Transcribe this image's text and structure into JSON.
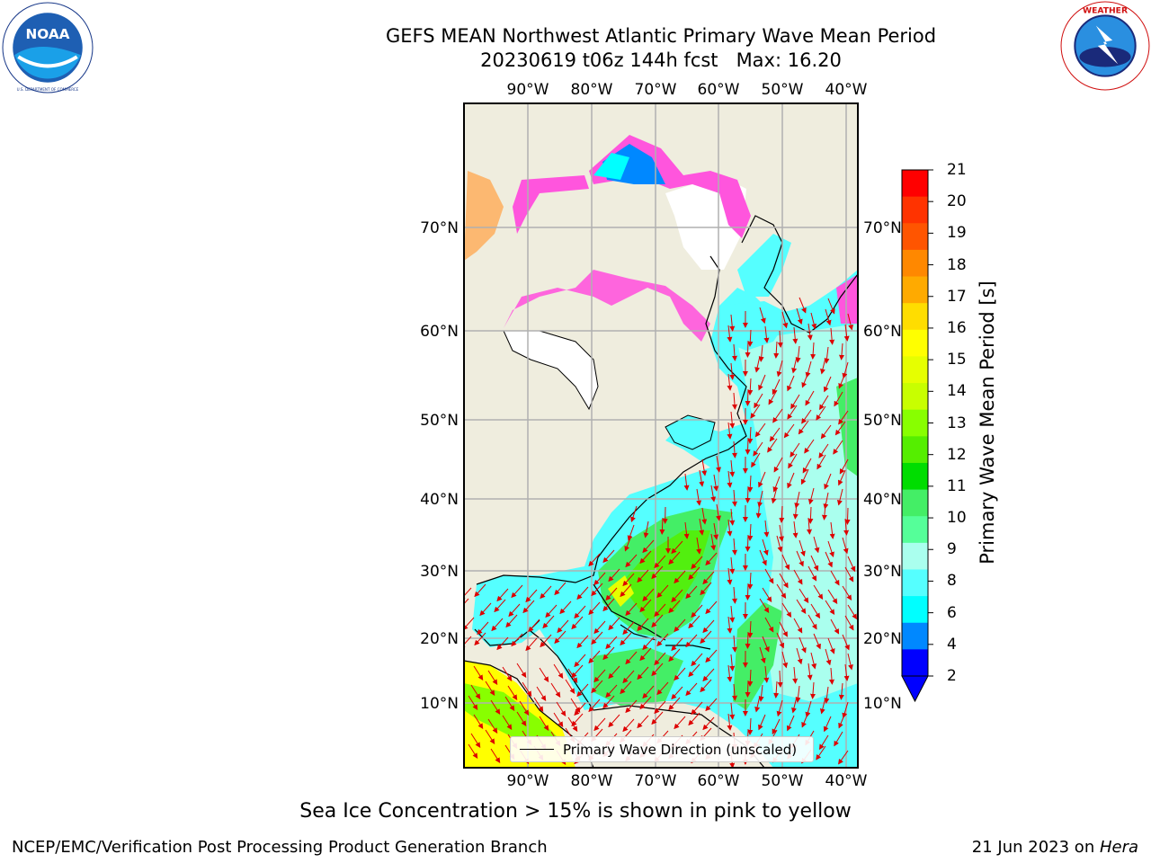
{
  "header": {
    "title": "GEFS MEAN Northwest Atlantic Primary Wave Mean Period",
    "subtitle": "20230619 t06z 144h fcst   Max: 16.20"
  },
  "logos": {
    "noaa": {
      "text": "NOAA",
      "ring_text": "NATIONAL OCEANIC AND ATMOSPHERIC ADMINISTRATION · U.S. DEPARTMENT OF COMMERCE",
      "icon": "noaa-logo"
    },
    "nws": {
      "ring_text": "NATIONAL WEATHER SERVICE",
      "icon": "nws-logo"
    }
  },
  "map": {
    "lon_ticks": [
      "90°W",
      "80°W",
      "70°W",
      "60°W",
      "50°W",
      "40°W"
    ],
    "lat_ticks": [
      "70°N",
      "60°N",
      "50°N",
      "40°N",
      "30°N",
      "20°N",
      "10°N"
    ],
    "legend_label": "Primary Wave Direction (unscaled)",
    "land_color": "#efedde",
    "ocean_base_color": "#55ffff"
  },
  "colorbar": {
    "label": "Primary Wave Mean Period [s]",
    "ticks": [
      "21",
      "20",
      "19",
      "18",
      "17",
      "16",
      "15",
      "14",
      "13",
      "12",
      "11",
      "10",
      "9",
      "8",
      "6",
      "4",
      "2"
    ],
    "colors": [
      "#ff0000",
      "#ff3300",
      "#ff5500",
      "#ff8800",
      "#ffaa00",
      "#ffdd00",
      "#ffff00",
      "#e6ff00",
      "#c8ff00",
      "#88ff00",
      "#55ee00",
      "#00dd00",
      "#44ee66",
      "#55ff99",
      "#aaffee",
      "#55ffff",
      "#00ffff",
      "#0088ff",
      "#0000ff"
    ]
  },
  "footer": {
    "caption": "Sea Ice Concentration > 15% is shown in pink to yellow",
    "credit": "NCEP/EMC/Verification Post Processing Product Generation Branch",
    "date": "21 Jun 2023 on ",
    "host": "Hera"
  }
}
